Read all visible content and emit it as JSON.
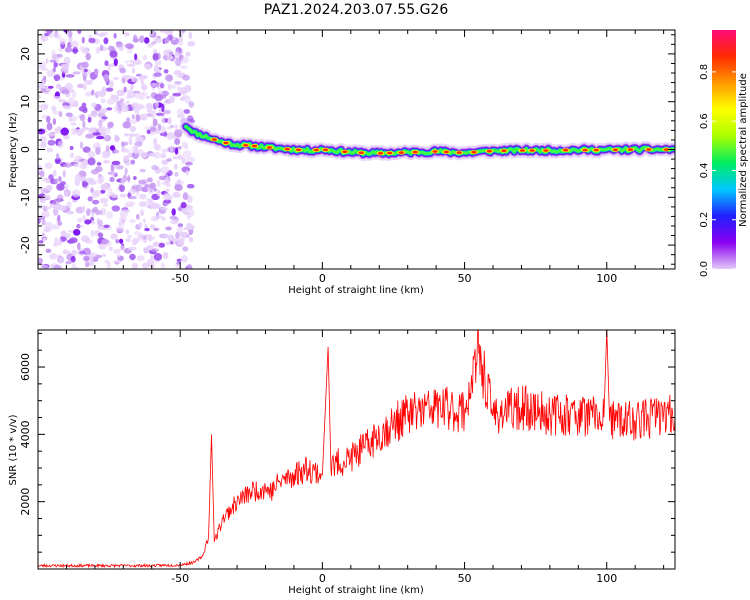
{
  "title": "PAZ1.2024.203.07.55.G26",
  "chart_data": [
    {
      "type": "heatmap",
      "xlabel": "Height of straight line (km)",
      "ylabel": "Frequency (Hz)",
      "xlim": [
        -100,
        124
      ],
      "ylim": [
        -25,
        25
      ],
      "xticks": [
        -50,
        0,
        50,
        100
      ],
      "yticks": [
        -20,
        -10,
        0,
        10,
        20
      ],
      "colorbar": {
        "label": "Normalized spectral amplitude",
        "range": [
          0,
          0.97
        ],
        "ticks": [
          0.0,
          0.2,
          0.4,
          0.6,
          0.8
        ],
        "colors": [
          "#e4c8f8",
          "#8a00f0",
          "#2020ff",
          "#00c8ff",
          "#00ee60",
          "#aaff00",
          "#ffff00",
          "#ff9a00",
          "#ff2a00",
          "#ff0a78"
        ]
      },
      "noise_region": {
        "x": [
          -100,
          -46
        ],
        "y": [
          -25,
          25
        ]
      },
      "signal_ridge": {
        "x": [
          -48,
          -45,
          -40,
          -35,
          -30,
          -25,
          -20,
          -15,
          -10,
          -5,
          0,
          10,
          20,
          30,
          40,
          50,
          60,
          70,
          80,
          90,
          100,
          110,
          124
        ],
        "frequency": [
          5,
          3.5,
          2.5,
          1.5,
          1,
          0.8,
          0.5,
          0.2,
          0,
          -0.2,
          0,
          -0.6,
          -0.8,
          -0.6,
          -0.4,
          -0.7,
          -0.3,
          -0.2,
          -0.2,
          -0.1,
          -0.1,
          0,
          0
        ]
      }
    },
    {
      "type": "line",
      "xlabel": "Height of straight line (km)",
      "ylabel": "SNR (10 * v/v)",
      "xlim": [
        -100,
        124
      ],
      "ylim": [
        0,
        7100
      ],
      "xticks": [
        -50,
        0,
        50,
        100
      ],
      "yticks": [
        2000,
        4000,
        6000
      ],
      "series": [
        {
          "color": "#ff0000",
          "x": [
            -100,
            -90,
            -80,
            -70,
            -60,
            -50,
            -45,
            -42,
            -40,
            -39,
            -38,
            -35,
            -30,
            -25,
            -20,
            -18,
            -15,
            -10,
            -5,
            0,
            2,
            3,
            4,
            10,
            15,
            20,
            25,
            30,
            40,
            50,
            55,
            60,
            70,
            80,
            90,
            99,
            100,
            101,
            110,
            120,
            124
          ],
          "y": [
            100,
            100,
            100,
            100,
            100,
            120,
            200,
            400,
            1000,
            4000,
            800,
            1500,
            2000,
            2300,
            2400,
            2300,
            2600,
            2800,
            3000,
            2800,
            6600,
            3000,
            3100,
            3300,
            3600,
            4000,
            4300,
            4600,
            4800,
            4700,
            6400,
            4600,
            4800,
            4600,
            4600,
            4500,
            7100,
            4400,
            4400,
            4600,
            4500
          ]
        }
      ]
    }
  ]
}
